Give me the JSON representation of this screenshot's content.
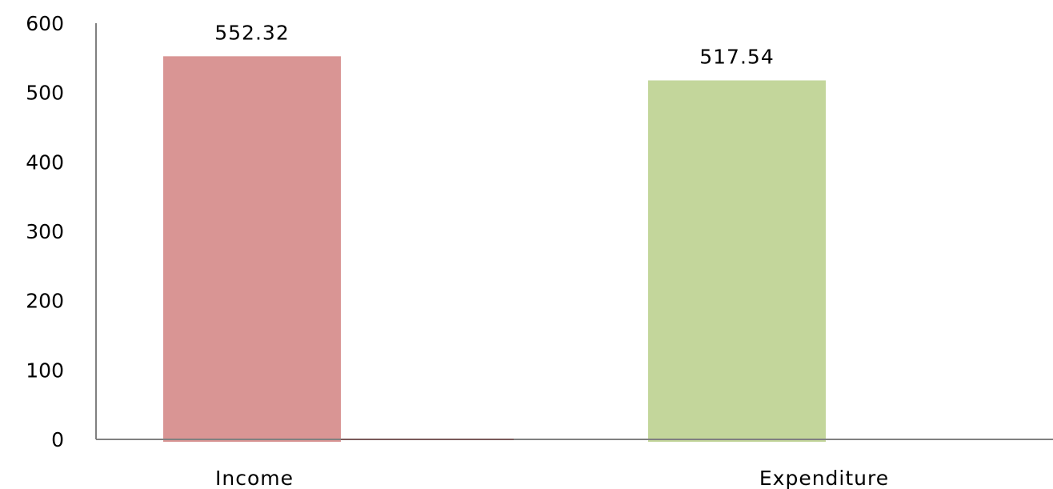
{
  "chart_data": {
    "type": "bar",
    "categories": [
      "Income",
      "Expenditure"
    ],
    "values": [
      552.32,
      517.54
    ],
    "data_labels": [
      "552.32",
      "517.54"
    ],
    "ylim": [
      0,
      600
    ],
    "yticks": [
      "0",
      "100",
      "200",
      "300",
      "400",
      "500",
      "600"
    ],
    "ytick_values": [
      0,
      100,
      200,
      300,
      400,
      500,
      600
    ],
    "bar_colors": [
      "#d99594",
      "#c3d69b"
    ],
    "title": "",
    "xlabel": "",
    "ylabel": "",
    "grid": false,
    "legend": "none"
  }
}
